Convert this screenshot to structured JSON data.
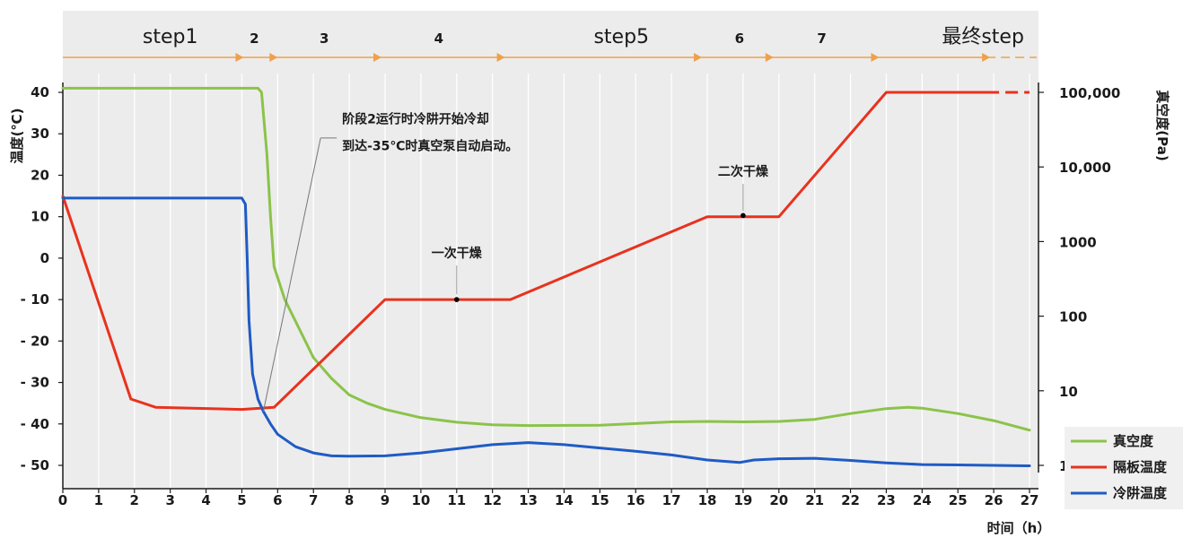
{
  "chart_data": {
    "type": "line",
    "xlabel": "时间（h）",
    "ylabel_left": "温度(℃)",
    "ylabel_right": "真空度(Pa)",
    "xlim": [
      0,
      27
    ],
    "ylim_left": [
      -50,
      40
    ],
    "ylim_right": [
      1,
      100000
    ],
    "right_axis_scale": "log",
    "grid": "vertical",
    "legend_placement": "bottom-right",
    "x_ticks": [
      "0",
      "1",
      "2",
      "3",
      "4",
      "5",
      "6",
      "7",
      "8",
      "9",
      "10",
      "11",
      "12",
      "13",
      "14",
      "15",
      "16",
      "17",
      "18",
      "19",
      "20",
      "21",
      "22",
      "23",
      "24",
      "25",
      "26",
      "27"
    ],
    "y_left_ticks": [
      "40",
      "30",
      "20",
      "10",
      "0",
      "- 10",
      "- 20",
      "- 30",
      "- 40",
      "- 50"
    ],
    "y_right_ticks": [
      "100,000",
      "10,000",
      "1000",
      "100",
      "10",
      "1"
    ],
    "steps": [
      {
        "label": "step1",
        "x": 3.0
      },
      {
        "label": "2",
        "x": 5.35
      },
      {
        "label": "3",
        "x": 7.3
      },
      {
        "label": "4",
        "x": 10.5
      },
      {
        "label": "step5",
        "x": 15.6
      },
      {
        "label": "6",
        "x": 18.9
      },
      {
        "label": "7",
        "x": 21.2
      },
      {
        "label": "最终step",
        "x": 25.7
      }
    ],
    "step_boundaries": [
      4.95,
      5.9,
      8.8,
      12.25,
      17.75,
      19.75,
      22.7,
      25.8
    ],
    "series": [
      {
        "name": "真空度",
        "color": "#8bc34a",
        "values": [
          [
            0,
            41
          ],
          [
            5.45,
            41
          ],
          [
            5.55,
            40
          ],
          [
            5.7,
            25
          ],
          [
            5.8,
            10
          ],
          [
            5.9,
            -2
          ],
          [
            6.2,
            -10
          ],
          [
            6.6,
            -17
          ],
          [
            7.0,
            -24
          ],
          [
            7.5,
            -29
          ],
          [
            8.0,
            -33
          ],
          [
            8.5,
            -35
          ],
          [
            9,
            -36.5
          ],
          [
            10,
            -38.5
          ],
          [
            11,
            -39.6
          ],
          [
            12,
            -40.2
          ],
          [
            13,
            -40.4
          ],
          [
            15,
            -40.3
          ],
          [
            17,
            -39.5
          ],
          [
            18,
            -39.4
          ],
          [
            19,
            -39.5
          ],
          [
            20,
            -39.4
          ],
          [
            21,
            -38.9
          ],
          [
            22,
            -37.5
          ],
          [
            23,
            -36.3
          ],
          [
            23.6,
            -36.0
          ],
          [
            24,
            -36.2
          ],
          [
            25,
            -37.5
          ],
          [
            26,
            -39.2
          ],
          [
            27,
            -41.5
          ]
        ]
      },
      {
        "name": "隔板温度",
        "color": "#e8321e",
        "values": [
          [
            0,
            15
          ],
          [
            1.9,
            -34
          ],
          [
            2.6,
            -36
          ],
          [
            5,
            -36.5
          ],
          [
            5.9,
            -36
          ],
          [
            9,
            -10
          ],
          [
            12.5,
            -10
          ],
          [
            18,
            10
          ],
          [
            20,
            10
          ],
          [
            23,
            40
          ],
          [
            25.8,
            40
          ]
        ],
        "dashed_continuation": [
          [
            25.8,
            40
          ],
          [
            27,
            40
          ]
        ]
      },
      {
        "name": "冷阱温度",
        "color": "#1f5bc4",
        "values": [
          [
            0,
            14.5
          ],
          [
            5,
            14.5
          ],
          [
            5.1,
            13
          ],
          [
            5.15,
            0
          ],
          [
            5.2,
            -15
          ],
          [
            5.3,
            -28
          ],
          [
            5.45,
            -34
          ],
          [
            5.6,
            -37
          ],
          [
            5.8,
            -40
          ],
          [
            6.0,
            -42.5
          ],
          [
            6.5,
            -45.5
          ],
          [
            7,
            -47
          ],
          [
            7.5,
            -47.7
          ],
          [
            8,
            -47.8
          ],
          [
            9,
            -47.7
          ],
          [
            10,
            -47
          ],
          [
            11,
            -46
          ],
          [
            12,
            -45
          ],
          [
            13,
            -44.5
          ],
          [
            14,
            -45
          ],
          [
            15,
            -45.8
          ],
          [
            16,
            -46.6
          ],
          [
            17,
            -47.5
          ],
          [
            18,
            -48.7
          ],
          [
            18.9,
            -49.3
          ],
          [
            19.3,
            -48.7
          ],
          [
            20,
            -48.4
          ],
          [
            21,
            -48.3
          ],
          [
            22,
            -48.8
          ],
          [
            23,
            -49.4
          ],
          [
            24,
            -49.8
          ],
          [
            25,
            -49.9
          ],
          [
            26,
            -50.0
          ],
          [
            27,
            -50.1
          ]
        ]
      }
    ],
    "annotations": [
      {
        "lines": [
          "阶段2运行时冷阱开始冷却",
          "到达-35℃时真空泵自动启动。"
        ],
        "x": 7.8,
        "y": 33
      },
      {
        "lines": [
          "一次干燥"
        ],
        "x": 11.0,
        "y": -10
      },
      {
        "lines": [
          "二次干燥"
        ],
        "x": 19.0,
        "y": 10.5
      }
    ],
    "legend": [
      {
        "label": "真空度",
        "color": "#8bc34a"
      },
      {
        "label": "隔板温度",
        "color": "#e8321e"
      },
      {
        "label": "冷阱温度",
        "color": "#1f5bc4"
      }
    ]
  }
}
